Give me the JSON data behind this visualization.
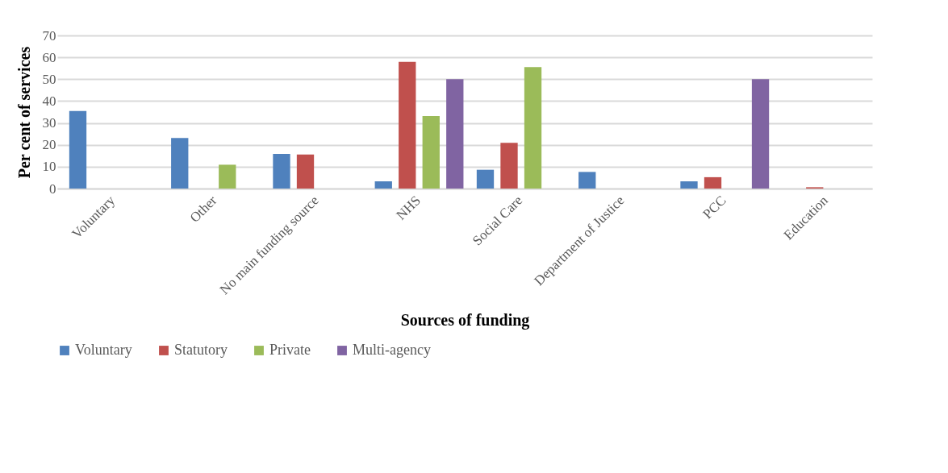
{
  "chart_data": {
    "type": "bar",
    "xlabel": "Sources of funding",
    "ylabel": "Per cent of services",
    "categories": [
      "Voluntary",
      "Other",
      "No main funding source",
      "NHS",
      "Social Care",
      "Department of Justice",
      "PCC",
      "Education"
    ],
    "series": [
      {
        "name": "Voluntary",
        "color": "#4f81bd",
        "values": [
          35.5,
          23.1,
          15.8,
          3.3,
          8.6,
          7.6,
          3.3,
          0
        ]
      },
      {
        "name": "Statutory",
        "color": "#c0504d",
        "values": [
          0,
          0,
          15.6,
          57.9,
          20.9,
          0,
          5.2,
          0.6
        ]
      },
      {
        "name": "Private",
        "color": "#9bbb59",
        "values": [
          0,
          10.9,
          0,
          33.2,
          55.5,
          0,
          0,
          0
        ]
      },
      {
        "name": "Multi-agency",
        "color": "#8064a2",
        "values": [
          0,
          0,
          0,
          50,
          0,
          0,
          50,
          0
        ]
      }
    ],
    "ylim": [
      0,
      70
    ],
    "yticks": [
      0,
      10,
      20,
      30,
      40,
      50,
      60,
      70
    ],
    "grid": "y",
    "legend": "bottom"
  }
}
